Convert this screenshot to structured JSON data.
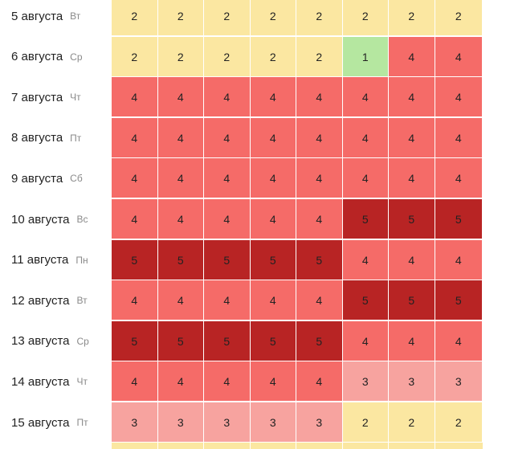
{
  "colors": {
    "1": "#b5e7a0",
    "2": "#fbe7a1",
    "3": "#f7a39f",
    "4": "#f56b68",
    "5": "#b82424"
  },
  "rows": [
    {
      "date": "5 августа",
      "weekday": "Вт",
      "values": [
        2,
        2,
        2,
        2,
        2,
        2,
        2,
        2
      ]
    },
    {
      "date": "6 августа",
      "weekday": "Ср",
      "values": [
        2,
        2,
        2,
        2,
        2,
        1,
        4,
        4
      ]
    },
    {
      "date": "7 августа",
      "weekday": "Чт",
      "values": [
        4,
        4,
        4,
        4,
        4,
        4,
        4,
        4
      ]
    },
    {
      "date": "8 августа",
      "weekday": "Пт",
      "values": [
        4,
        4,
        4,
        4,
        4,
        4,
        4,
        4
      ]
    },
    {
      "date": "9 августа",
      "weekday": "Сб",
      "values": [
        4,
        4,
        4,
        4,
        4,
        4,
        4,
        4
      ]
    },
    {
      "date": "10 августа",
      "weekday": "Вс",
      "values": [
        4,
        4,
        4,
        4,
        4,
        5,
        5,
        5
      ]
    },
    {
      "date": "11 августа",
      "weekday": "Пн",
      "values": [
        5,
        5,
        5,
        5,
        5,
        4,
        4,
        4
      ]
    },
    {
      "date": "12 августа",
      "weekday": "Вт",
      "values": [
        4,
        4,
        4,
        4,
        4,
        5,
        5,
        5
      ]
    },
    {
      "date": "13 августа",
      "weekday": "Ср",
      "values": [
        5,
        5,
        5,
        5,
        5,
        4,
        4,
        4
      ]
    },
    {
      "date": "14 августа",
      "weekday": "Чт",
      "values": [
        4,
        4,
        4,
        4,
        4,
        3,
        3,
        3
      ]
    },
    {
      "date": "15 августа",
      "weekday": "Пт",
      "values": [
        3,
        3,
        3,
        3,
        3,
        2,
        2,
        2
      ]
    }
  ],
  "partial_row_levels": [
    2,
    2,
    2,
    2,
    2,
    2,
    2,
    2
  ]
}
